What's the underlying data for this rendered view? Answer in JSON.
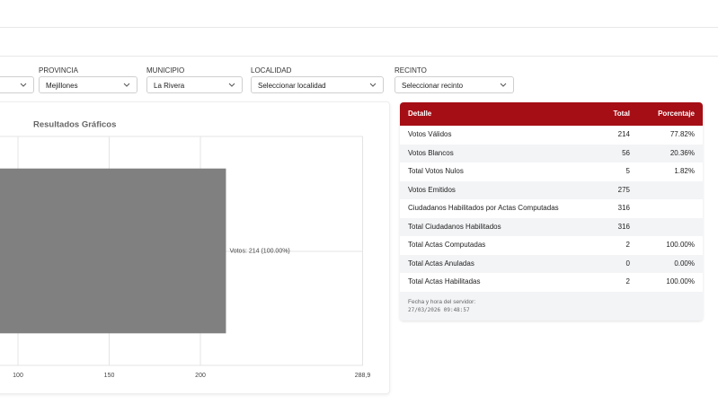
{
  "filters": [
    {
      "label": "PROVINCIA",
      "value": "Mejillones"
    },
    {
      "label": "MUNICIPIO",
      "value": "La Rivera"
    },
    {
      "label": "LOCALIDAD",
      "value": "Seleccionar localidad"
    },
    {
      "label": "RECINTO",
      "value": "Seleccionar recinto"
    }
  ],
  "chart_data": {
    "type": "bar",
    "orientation": "horizontal",
    "title": "Resultados Gráficos",
    "categories": [
      null
    ],
    "values": [
      214
    ],
    "value_labels": [
      "Votos: 214 (100.00%)"
    ],
    "color": "#808080",
    "xlim": [
      0,
      288.9
    ],
    "xticks": [
      100,
      150,
      200,
      {
        "value": 288.9,
        "label": "288,9"
      }
    ],
    "grid": true
  },
  "table": {
    "columns": [
      "Detalle",
      "Total",
      "Porcentaje"
    ],
    "rows": [
      [
        "Votos Válidos",
        "214",
        "77.82%"
      ],
      [
        "Votos Blancos",
        "56",
        "20.36%"
      ],
      [
        "Total Votos Nulos",
        "5",
        "1.82%"
      ],
      [
        "Votos Emitidos",
        "275",
        null
      ],
      [
        "Ciudadanos Habilitados por Actas Computadas",
        "316",
        null
      ],
      [
        "Total Ciudadanos Habilitados",
        "316",
        null
      ],
      [
        "Total Actas Computadas",
        "2",
        "100.00%"
      ],
      [
        "Total Actas Anuladas",
        "0",
        "0.00%"
      ],
      [
        "Total Actas Habilitadas",
        "2",
        "100.00%"
      ]
    ],
    "footer": {
      "label": "Fecha y hora del servidor:",
      "timestamp": "27/03/2026 09:48:57"
    }
  }
}
